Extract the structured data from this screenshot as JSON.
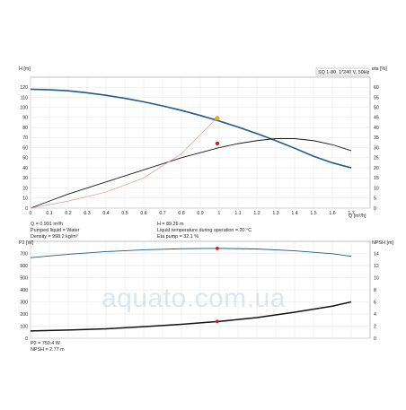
{
  "chart_data": [
    {
      "type": "line",
      "title": "SQ 1-80, 1*240 V, 50Hz",
      "xlabel": "Q [m³/h]",
      "ylabel": "H [m]",
      "y2label": "eta [%]",
      "xlim": [
        0,
        1.8
      ],
      "ylim": [
        0,
        130
      ],
      "y2lim": [
        0,
        65
      ],
      "grid": true,
      "x_ticks": [
        "0",
        "0.1",
        "0.2",
        "0.3",
        "0.4",
        "0.5",
        "0.6",
        "0.7",
        "0.8",
        "0.9",
        "1",
        "1.1",
        "1.2",
        "1.3",
        "1.4",
        "1.5",
        "1.6",
        "1.7"
      ],
      "y_ticks": [
        "0",
        "10",
        "20",
        "30",
        "40",
        "50",
        "60",
        "70",
        "80",
        "90",
        "100",
        "110",
        "120"
      ],
      "y2_ticks": [
        "0",
        "5",
        "10",
        "15",
        "20",
        "25",
        "30",
        "35",
        "40",
        "45",
        "50",
        "55",
        "60"
      ],
      "series": [
        {
          "name": "H",
          "axis": "left",
          "color": "#1f5a8c",
          "x": [
            0,
            0.1,
            0.2,
            0.3,
            0.4,
            0.5,
            0.6,
            0.7,
            0.8,
            0.9,
            1.0,
            1.1,
            1.2,
            1.3,
            1.4,
            1.5,
            1.6,
            1.7
          ],
          "y": [
            118,
            117.5,
            116.5,
            114.5,
            112,
            109,
            105.5,
            101.5,
            97,
            92,
            86.5,
            80.5,
            74,
            67,
            59.5,
            51.5,
            45,
            40
          ]
        },
        {
          "name": "Eta pump",
          "axis": "right",
          "color": "#1a1a1a",
          "x": [
            0,
            0.1,
            0.2,
            0.3,
            0.4,
            0.5,
            0.6,
            0.7,
            0.8,
            0.9,
            1.0,
            1.1,
            1.2,
            1.3,
            1.4,
            1.5,
            1.6,
            1.7
          ],
          "y": [
            0,
            3.5,
            7,
            10,
            13,
            16,
            19,
            22,
            25,
            27.5,
            30,
            32,
            33.5,
            34.5,
            34.5,
            33.5,
            31.5,
            28.5
          ]
        },
        {
          "name": "Eta total",
          "axis": "right",
          "color": "#e39a9a",
          "x": [
            0,
            0.2,
            0.4,
            0.6,
            0.8,
            0.99
          ],
          "y": [
            0,
            3.5,
            8,
            15,
            27,
            45
          ]
        }
      ],
      "markers": [
        {
          "series": "H",
          "x": 0.99,
          "y": 89.26,
          "color": "#f0b000"
        },
        {
          "series": "Eta pump",
          "x": 0.99,
          "y": 32.1,
          "color": "#d61a1a"
        }
      ],
      "annotations": [
        "Q = 0.991 m³/h",
        "Pumped liquid = Water",
        "Density = 998.2 kg/m³",
        "H = 89.26 m",
        "Liquid temperature during operation = 20 °C",
        "Eta pump = 32.1 %"
      ]
    },
    {
      "type": "line",
      "xlabel": "",
      "ylabel": "P2 [W]",
      "y2label": "NPSH [m]",
      "xlim": [
        0,
        1.8
      ],
      "ylim": [
        0,
        800
      ],
      "y2lim": [
        0,
        16
      ],
      "grid": true,
      "y_ticks": [
        "0",
        "100",
        "200",
        "300",
        "400",
        "500",
        "600",
        "700"
      ],
      "y2_ticks": [
        "0",
        "2",
        "4",
        "6",
        "8",
        "10",
        "12",
        "14"
      ],
      "series": [
        {
          "name": "P2",
          "axis": "left",
          "color": "#1f5a8c",
          "x": [
            0,
            0.2,
            0.4,
            0.6,
            0.8,
            1.0,
            1.2,
            1.4,
            1.6,
            1.7
          ],
          "y": [
            665,
            693,
            715,
            730,
            739,
            742,
            737,
            722,
            698,
            676
          ]
        },
        {
          "name": "NPSH",
          "axis": "right",
          "color": "#111111",
          "x": [
            0,
            0.2,
            0.4,
            0.6,
            0.8,
            1.0,
            1.2,
            1.4,
            1.6,
            1.7
          ],
          "y": [
            1.2,
            1.35,
            1.55,
            1.9,
            2.3,
            2.77,
            3.4,
            4.3,
            5.3,
            6.0
          ]
        }
      ],
      "markers": [
        {
          "series": "P2",
          "x": 0.99,
          "y": 750.4,
          "color": "#d61a1a"
        },
        {
          "series": "NPSH",
          "x": 0.99,
          "y": 2.77,
          "color": "#d61a1a"
        }
      ],
      "annotations": [
        "P2 = 750.4 W",
        "NPSH = 2.77 m"
      ]
    }
  ],
  "watermark": "aquato.com.ua"
}
